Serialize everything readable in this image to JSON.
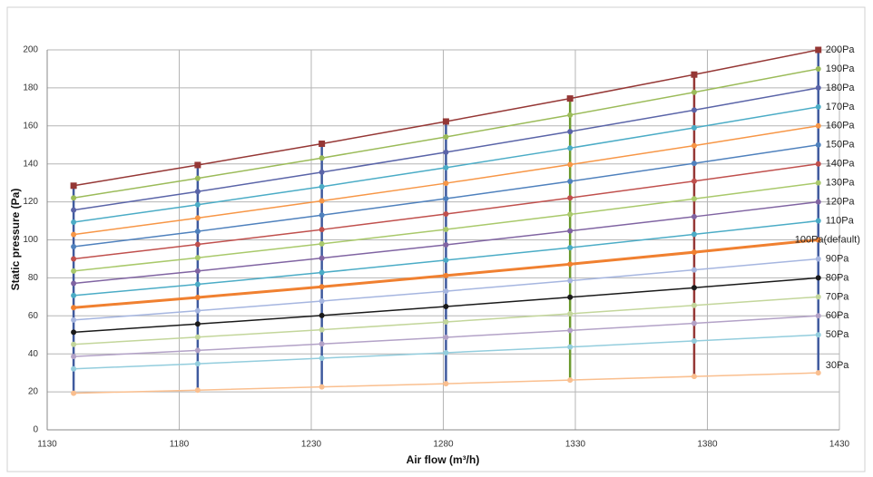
{
  "chart_data": {
    "type": "line",
    "x_label": "Air flow (m³/h)",
    "y_label": "Static pressure (Pa)",
    "x": [
      1140,
      1187,
      1234,
      1281,
      1328,
      1375,
      1422
    ],
    "xlim": [
      1130,
      1430
    ],
    "xticks": [
      1130,
      1180,
      1230,
      1280,
      1330,
      1380,
      1430
    ],
    "ylim": [
      0,
      200
    ],
    "yticks": [
      0,
      20,
      40,
      60,
      80,
      100,
      120,
      140,
      160,
      180,
      200
    ],
    "grid": true,
    "series": [
      {
        "name": "200Pa",
        "color": "#953735",
        "values": [
          128.5,
          139.4,
          150.6,
          162.3,
          174.4,
          187,
          200
        ]
      },
      {
        "name": "190Pa",
        "color": "#9bbb59",
        "values": [
          122.1,
          132.4,
          143.1,
          154.2,
          165.7,
          177.7,
          190
        ]
      },
      {
        "name": "180Pa",
        "color": "#5a64a8",
        "values": [
          115.7,
          125.4,
          135.6,
          146.1,
          157,
          168.3,
          180
        ]
      },
      {
        "name": "170Pa",
        "color": "#4bacc6",
        "values": [
          109.3,
          118.5,
          128,
          138,
          148.3,
          159,
          170
        ]
      },
      {
        "name": "160Pa",
        "color": "#f79646",
        "values": [
          102.8,
          111.5,
          120.5,
          129.8,
          139.6,
          149.6,
          160
        ]
      },
      {
        "name": "150Pa",
        "color": "#4f81bd",
        "values": [
          96.4,
          104.5,
          113,
          121.7,
          130.8,
          140.3,
          150
        ]
      },
      {
        "name": "140Pa",
        "color": "#c0504d",
        "values": [
          90,
          97.6,
          105.4,
          113.6,
          122.1,
          130.9,
          140
        ]
      },
      {
        "name": "130Pa",
        "color": "#a9c96b",
        "values": [
          83.6,
          90.6,
          97.9,
          105.5,
          113.4,
          121.6,
          130
        ]
      },
      {
        "name": "120Pa",
        "color": "#8064a2",
        "values": [
          77.1,
          83.6,
          90.4,
          97.4,
          104.7,
          112.2,
          120
        ]
      },
      {
        "name": "110Pa",
        "color": "#4bacc6",
        "values": [
          70.7,
          76.6,
          82.8,
          89.3,
          95.9,
          102.9,
          110
        ]
      },
      {
        "name": "100Pa(default)",
        "color": "#f08030",
        "width": 3,
        "values": [
          64.3,
          69.7,
          75.3,
          81.2,
          87.2,
          93.5,
          100
        ]
      },
      {
        "name": "90Pa",
        "color": "#a6b6e0",
        "values": [
          57.8,
          62.7,
          67.8,
          73,
          78.5,
          84.2,
          90
        ]
      },
      {
        "name": "80Pa",
        "color": "#1a1a1a",
        "values": [
          51.4,
          55.7,
          60.2,
          64.9,
          69.8,
          74.8,
          80
        ]
      },
      {
        "name": "70Pa",
        "color": "#c3d69b",
        "values": [
          45,
          48.8,
          52.7,
          56.8,
          61.1,
          65.5,
          70
        ]
      },
      {
        "name": "60Pa",
        "color": "#b3a2c7",
        "values": [
          38.6,
          41.8,
          45.2,
          48.7,
          52.3,
          56.1,
          60
        ]
      },
      {
        "name": "50Pa",
        "color": "#93cddd",
        "values": [
          32.1,
          34.8,
          37.7,
          40.6,
          43.6,
          46.8,
          50
        ]
      },
      {
        "name": "30Pa",
        "color": "#fabf8f",
        "values": [
          19.3,
          20.9,
          22.6,
          24.3,
          26.2,
          28.1,
          30
        ]
      }
    ]
  }
}
